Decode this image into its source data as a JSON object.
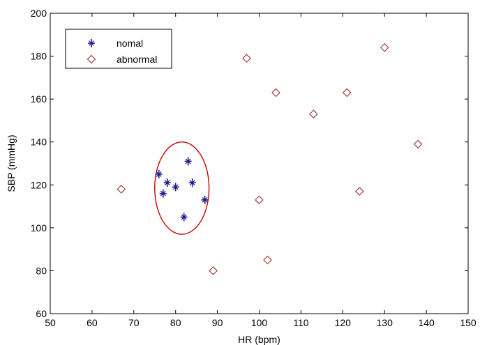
{
  "chart_data": {
    "type": "scatter",
    "title": "",
    "xlabel": "HR (bpm)",
    "ylabel": "SBP (mmHg)",
    "xlim": [
      50,
      150
    ],
    "ylim": [
      60,
      200
    ],
    "xticks": [
      50,
      60,
      70,
      80,
      90,
      100,
      110,
      120,
      130,
      140,
      150
    ],
    "yticks": [
      60,
      80,
      100,
      120,
      140,
      160,
      180,
      200
    ],
    "grid": false,
    "legend_position": "top-left",
    "series": [
      {
        "name": "nomal",
        "marker": "star",
        "color": "#1a1a8c",
        "points": [
          {
            "x": 76,
            "y": 125
          },
          {
            "x": 77,
            "y": 116
          },
          {
            "x": 78,
            "y": 121
          },
          {
            "x": 80,
            "y": 119
          },
          {
            "x": 82,
            "y": 105
          },
          {
            "x": 83,
            "y": 131
          },
          {
            "x": 84,
            "y": 121
          },
          {
            "x": 87,
            "y": 113
          }
        ]
      },
      {
        "name": "abnormal",
        "marker": "diamond",
        "color": "#a04040",
        "points": [
          {
            "x": 67,
            "y": 118
          },
          {
            "x": 89,
            "y": 80
          },
          {
            "x": 97,
            "y": 179
          },
          {
            "x": 100,
            "y": 113
          },
          {
            "x": 102,
            "y": 85
          },
          {
            "x": 104,
            "y": 163
          },
          {
            "x": 113,
            "y": 153
          },
          {
            "x": 121,
            "y": 163
          },
          {
            "x": 124,
            "y": 117
          },
          {
            "x": 130,
            "y": 184
          },
          {
            "x": 138,
            "y": 139
          }
        ]
      }
    ],
    "annotations": [
      {
        "type": "circle",
        "cx": 81.5,
        "cy": 118.5,
        "rx": 6.5,
        "ry": 21.5,
        "color": "#cc0000"
      }
    ]
  }
}
